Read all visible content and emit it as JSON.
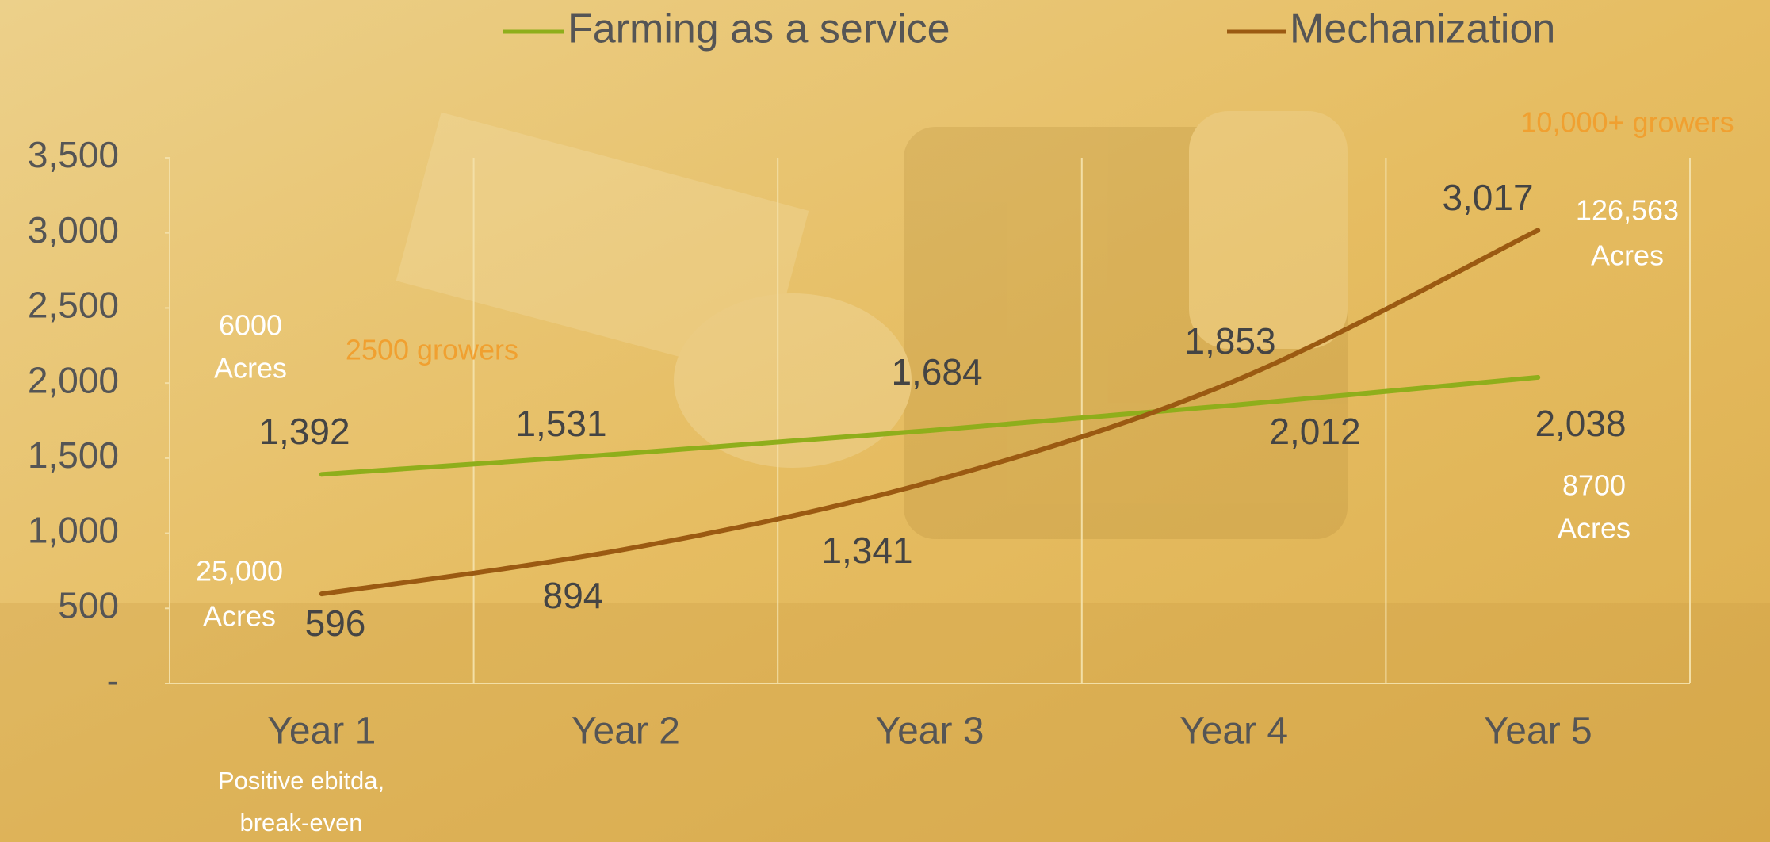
{
  "chart_data": {
    "type": "line",
    "categories": [
      "Year 1",
      "Year 2",
      "Year 3",
      "Year 4",
      "Year 5"
    ],
    "series": [
      {
        "name": "Farming as a service",
        "color": "#8fae1b",
        "values": [
          1392,
          1531,
          1684,
          1853,
          2038
        ],
        "value_labels": [
          "1,392",
          "1,531",
          "1,684",
          "1,853",
          "2,038"
        ]
      },
      {
        "name": "Mechanization",
        "color": "#9b5a12",
        "values": [
          596,
          894,
          1341,
          2012,
          3017
        ],
        "value_labels": [
          "596",
          "894",
          "1,341",
          "2,012",
          "3,017"
        ]
      }
    ],
    "ylim": [
      0,
      3500
    ],
    "yticks": [
      {
        "value": 0,
        "label": "-"
      },
      500,
      {
        "value": 1000,
        "label": "1,000"
      },
      {
        "value": 1500,
        "label": "1,500"
      },
      {
        "value": 2000,
        "label": "2,000"
      },
      {
        "value": 2500,
        "label": "2,500"
      },
      {
        "value": 3000,
        "label": "3,000"
      },
      {
        "value": 3500,
        "label": "3,500"
      }
    ],
    "legend": "top",
    "annotations": [
      {
        "lines": [
          "6000",
          "Acres"
        ],
        "color": "#ffffff"
      },
      {
        "lines": [
          "2500 growers"
        ],
        "color": "#f0a030"
      },
      {
        "lines": [
          "25,000",
          "Acres"
        ],
        "color": "#ffffff"
      },
      {
        "lines": [
          "Positive ebitda,",
          "break-even"
        ],
        "color": "#ffffff"
      },
      {
        "lines": [
          "10,000+ growers"
        ],
        "color": "#f0a030"
      },
      {
        "lines": [
          "126,563",
          "Acres"
        ],
        "color": "#ffffff"
      },
      {
        "lines": [
          "8700",
          "Acres"
        ],
        "color": "#ffffff"
      }
    ]
  }
}
